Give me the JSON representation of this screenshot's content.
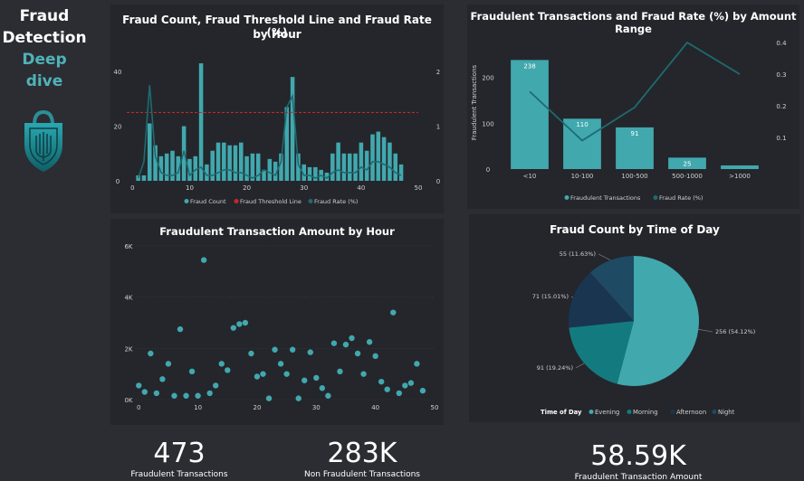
{
  "header": {
    "line1": "Fraud",
    "line2": "Detection",
    "line3": "Deep dive"
  },
  "kpis": [
    {
      "value": "473",
      "label": "Fraudulent Transactions"
    },
    {
      "value": "283K",
      "label": "Non Fraudulent Transactions"
    },
    {
      "value": "58.59K",
      "label": "Fraudulent Transaction Amount"
    }
  ],
  "colors": {
    "teal": "#41a8ae",
    "dark_teal": "#137b80",
    "navy": "#1a3550",
    "slate": "#1e4a63",
    "threshold": "#c4272d",
    "background": "#2b2d33",
    "card": "#24262b"
  },
  "chart_data": [
    {
      "type": "bar",
      "title_line1": "Fraud Count, Fraud Threshold Line and Fraud Rate (%)",
      "title_line2": "by Hour",
      "x_ticks": [
        "0",
        "10",
        "20",
        "30",
        "40",
        "50"
      ],
      "y_ticks": [
        "0",
        "20",
        "40"
      ],
      "y2_ticks": [
        "0",
        "1",
        "2"
      ],
      "ylim": [
        0,
        44
      ],
      "y2lim": [
        0,
        2.2
      ],
      "xlim": [
        -1,
        50
      ],
      "threshold": 25,
      "legend": [
        "Fraud Count",
        "Fraud Threshold Line",
        "Fraud Rate (%)"
      ],
      "hours": [
        1,
        2,
        3,
        4,
        5,
        6,
        7,
        8,
        9,
        10,
        11,
        12,
        13,
        14,
        15,
        16,
        17,
        18,
        19,
        20,
        21,
        22,
        23,
        24,
        25,
        26,
        27,
        28,
        29,
        30,
        31,
        32,
        33,
        34,
        35,
        36,
        37,
        38,
        39,
        40,
        41,
        42,
        43,
        44,
        45,
        46,
        47
      ],
      "fraud_count": [
        2,
        2,
        21,
        13,
        9,
        10,
        11,
        9,
        20,
        8,
        9,
        43,
        6,
        11,
        14,
        14,
        13,
        13,
        14,
        9,
        10,
        10,
        4,
        8,
        7,
        10,
        27,
        38,
        10,
        6,
        5,
        5,
        4,
        3,
        10,
        14,
        10,
        10,
        10,
        14,
        11,
        17,
        18,
        16,
        14,
        10,
        6
      ],
      "fraud_rate": [
        0.05,
        0.35,
        1.75,
        0.45,
        0.15,
        0.1,
        0.1,
        0.15,
        0.55,
        0.1,
        0.2,
        0.25,
        0.1,
        0.1,
        0.15,
        0.2,
        0.2,
        0.15,
        0.15,
        0.1,
        0.05,
        0.1,
        0.2,
        0.15,
        0.1,
        0.35,
        1.35,
        1.55,
        0.3,
        0.1,
        0.1,
        0.05,
        0.1,
        0.05,
        0.15,
        0.2,
        0.15,
        0.15,
        0.15,
        0.25,
        0.2,
        0.35,
        0.35,
        0.3,
        0.25,
        0.15,
        0.1
      ]
    },
    {
      "type": "bar",
      "title": "Fraudulent Transactions and Fraud Rate (%) by Amount Range",
      "ylabel": "Fraudulent Transactions",
      "categories": [
        "<10",
        "10-100",
        "100-500",
        "500-1000",
        ">1000"
      ],
      "values": [
        238,
        110,
        91,
        25,
        8
      ],
      "data_labels": [
        "238",
        "110",
        "91",
        "25",
        ""
      ],
      "fraud_rate": [
        0.245,
        0.09,
        0.195,
        0.4,
        0.3
      ],
      "y_ticks": [
        "0",
        "100",
        "200"
      ],
      "y2_ticks": [
        "0.1",
        "0.2",
        "0.3",
        "0.4"
      ],
      "ylim": [
        0,
        290
      ],
      "y2lim": [
        0,
        0.42
      ],
      "legend": [
        "Fraudulent Transactions",
        "Fraud Rate (%)"
      ]
    },
    {
      "type": "scatter",
      "title": "Fraudulent Transaction Amount by Hour",
      "x_ticks": [
        "0",
        "10",
        "20",
        "30",
        "40",
        "50"
      ],
      "y_ticks": [
        "0K",
        "2K",
        "4K",
        "6K"
      ],
      "xlim": [
        -0.5,
        50
      ],
      "ylim": [
        0,
        6000
      ],
      "points": [
        [
          0,
          550
        ],
        [
          1,
          300
        ],
        [
          2,
          1800
        ],
        [
          3,
          250
        ],
        [
          4,
          800
        ],
        [
          5,
          1400
        ],
        [
          6,
          150
        ],
        [
          7,
          2750
        ],
        [
          8,
          150
        ],
        [
          9,
          1100
        ],
        [
          10,
          150
        ],
        [
          11,
          5450
        ],
        [
          12,
          250
        ],
        [
          13,
          550
        ],
        [
          14,
          1400
        ],
        [
          15,
          1150
        ],
        [
          16,
          2800
        ],
        [
          17,
          2950
        ],
        [
          18,
          3000
        ],
        [
          19,
          1800
        ],
        [
          20,
          900
        ],
        [
          21,
          1000
        ],
        [
          22,
          50
        ],
        [
          23,
          1950
        ],
        [
          24,
          1400
        ],
        [
          25,
          1000
        ],
        [
          26,
          1950
        ],
        [
          27,
          50
        ],
        [
          28,
          750
        ],
        [
          29,
          1850
        ],
        [
          30,
          850
        ],
        [
          31,
          450
        ],
        [
          32,
          150
        ],
        [
          33,
          2200
        ],
        [
          34,
          1100
        ],
        [
          35,
          2150
        ],
        [
          36,
          2400
        ],
        [
          37,
          1800
        ],
        [
          38,
          1000
        ],
        [
          39,
          2250
        ],
        [
          40,
          1700
        ],
        [
          41,
          700
        ],
        [
          42,
          400
        ],
        [
          43,
          3400
        ],
        [
          44,
          250
        ],
        [
          45,
          550
        ],
        [
          46,
          650
        ],
        [
          47,
          1400
        ],
        [
          48,
          350
        ]
      ]
    },
    {
      "type": "pie",
      "title": "Fraud Count by Time of Day",
      "legend_title": "Time of Day",
      "slices": [
        {
          "name": "Evening",
          "value": 256,
          "label": "256 (54.12%)",
          "color": "#41a8ae"
        },
        {
          "name": "Morning",
          "value": 91,
          "label": "91 (19.24%)",
          "color": "#137b80"
        },
        {
          "name": "Afternoon",
          "value": 71,
          "label": "71 (15.01%)",
          "color": "#1a3550"
        },
        {
          "name": "Night",
          "value": 55,
          "label": "55 (11.63%)",
          "color": "#1e4a63"
        }
      ]
    }
  ]
}
